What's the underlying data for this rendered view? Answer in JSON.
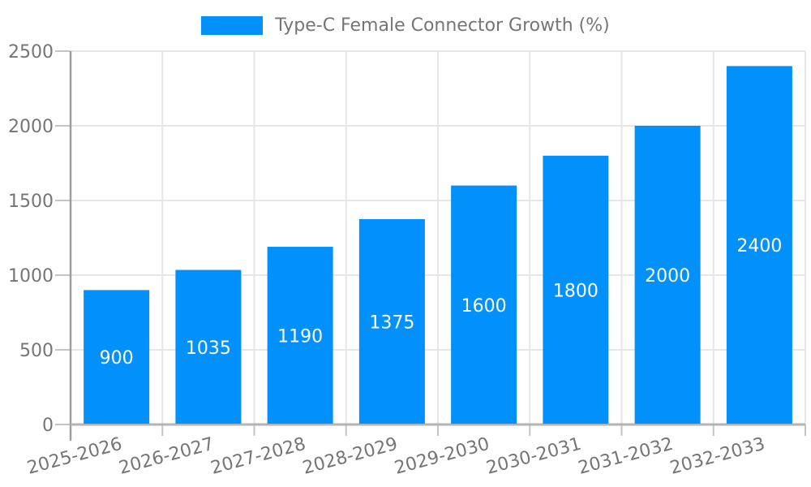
{
  "legend": {
    "label": "Type-C Female Connector Growth (%)"
  },
  "chart_data": {
    "type": "bar",
    "title": "Type-C Female Connector Growth (%)",
    "categories": [
      "2025-2026",
      "2026-2027",
      "2027-2028",
      "2028-2029",
      "2029-2030",
      "2030-2031",
      "2031-2032",
      "2032-2033"
    ],
    "values": [
      900,
      1035,
      1190,
      1375,
      1600,
      1800,
      2000,
      2400
    ],
    "series": [
      {
        "name": "Type-C Female Connector Growth (%)",
        "values": [
          900,
          1035,
          1190,
          1375,
          1600,
          1800,
          2000,
          2400
        ]
      }
    ],
    "xlabel": "",
    "ylabel": "",
    "ylim": [
      0,
      2500
    ],
    "yticks": [
      0,
      500,
      1000,
      1500,
      2000,
      2500
    ],
    "grid": true,
    "legend_position": "top",
    "x_label_rotation_deg": -15,
    "bar_color": "#0291fb",
    "bar_label_color": "#ffffff",
    "axis_text_color": "#757575",
    "grid_color": "#e6e6e6",
    "axis_line_color": "#9e9e9e",
    "baseline_color": "#b3b3b3",
    "tick_color": "#c4c4c4"
  }
}
